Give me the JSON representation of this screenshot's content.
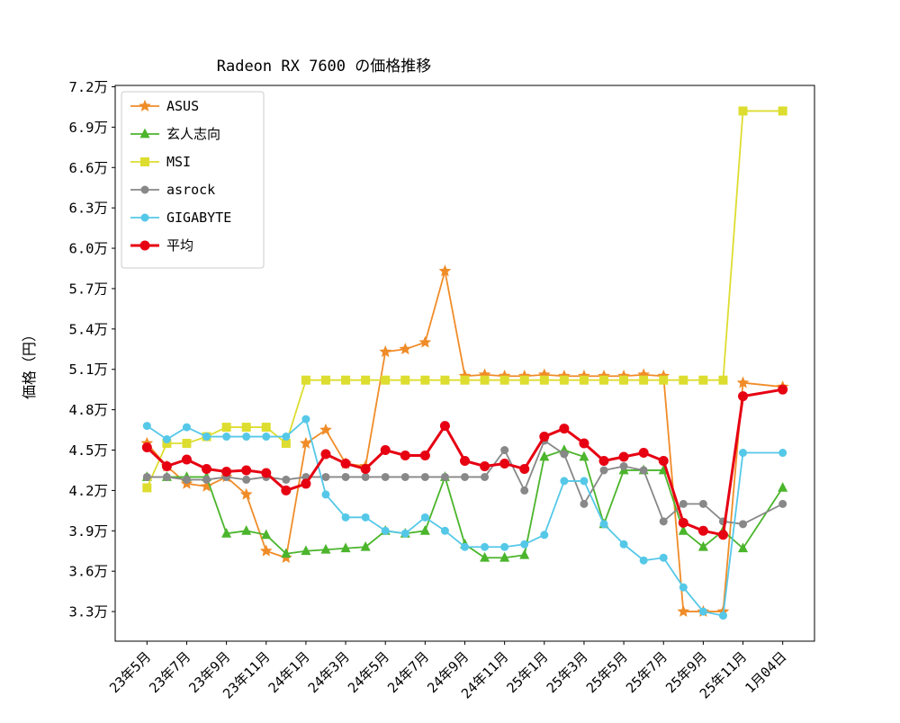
{
  "chart_data": {
    "type": "line",
    "title": "Radeon RX 7600 の価格推移",
    "ylabel": "価格（円）",
    "xlabel": "",
    "value_unit": "万円",
    "grid": false,
    "legend_position": "upper-left",
    "xlim": [
      -1.6,
      33.6
    ],
    "ylim": [
      3.08,
      7.21
    ],
    "y_ticks": [
      3.3,
      3.6,
      3.9,
      4.2,
      4.5,
      4.8,
      5.1,
      5.4,
      5.7,
      6.0,
      6.3,
      6.6,
      6.9,
      7.2
    ],
    "y_tick_labels": [
      "3.3万",
      "3.6万",
      "3.9万",
      "4.2万",
      "4.5万",
      "4.8万",
      "5.1万",
      "5.4万",
      "5.7万",
      "6.0万",
      "6.3万",
      "6.6万",
      "6.9万",
      "7.2万"
    ],
    "x_tick_positions": [
      0,
      2,
      4,
      6,
      8,
      10,
      12,
      14,
      16,
      18,
      20,
      22,
      24,
      26,
      28,
      30,
      32
    ],
    "x_tick_labels": [
      "23年5月",
      "23年7月",
      "23年9月",
      "23年11月",
      "24年1月",
      "24年3月",
      "24年5月",
      "24年7月",
      "24年9月",
      "24年11月",
      "25年1月",
      "25年3月",
      "25年5月",
      "25年7月",
      "25年9月",
      "25年11月",
      "1月04日"
    ],
    "x": [
      0,
      1,
      2,
      3,
      4,
      5,
      6,
      7,
      8,
      9,
      10,
      11,
      12,
      13,
      14,
      15,
      16,
      17,
      18,
      19,
      20,
      21,
      22,
      23,
      24,
      25,
      26,
      27,
      28,
      29,
      30,
      32
    ],
    "series": [
      {
        "name": "ASUS",
        "color": "#f08c28",
        "marker": "star",
        "marker_size": 4.5,
        "line_width": 1.8,
        "values": [
          4.55,
          4.38,
          4.25,
          4.23,
          4.3,
          4.17,
          3.75,
          3.7,
          4.55,
          4.65,
          4.4,
          4.38,
          5.23,
          5.25,
          5.3,
          5.83,
          5.05,
          5.06,
          5.05,
          5.05,
          5.06,
          5.05,
          5.05,
          5.05,
          5.05,
          5.06,
          5.05,
          3.3,
          3.3,
          3.3,
          5.0,
          4.97
        ]
      },
      {
        "name": "玄人志向",
        "color": "#4bb52c",
        "marker": "triangle",
        "marker_size": 5.5,
        "line_width": 1.8,
        "values": [
          4.3,
          4.3,
          4.3,
          4.3,
          3.88,
          3.9,
          3.87,
          3.73,
          3.75,
          3.76,
          3.77,
          3.78,
          3.9,
          3.88,
          3.9,
          4.3,
          3.8,
          3.7,
          3.7,
          3.72,
          4.45,
          4.5,
          4.45,
          3.95,
          4.35,
          4.35,
          4.35,
          3.9,
          3.78,
          3.9,
          3.77,
          4.22
        ]
      },
      {
        "name": "MSI",
        "color": "#dddd30",
        "marker": "square",
        "marker_size": 5,
        "line_width": 1.8,
        "values": [
          4.22,
          4.55,
          4.55,
          4.6,
          4.67,
          4.67,
          4.67,
          4.55,
          5.02,
          5.02,
          5.02,
          5.02,
          5.02,
          5.02,
          5.02,
          5.02,
          5.02,
          5.02,
          5.02,
          5.02,
          5.02,
          5.02,
          5.02,
          5.02,
          5.02,
          5.02,
          5.02,
          5.02,
          5.02,
          5.02,
          7.02,
          7.02
        ]
      },
      {
        "name": "asrock",
        "color": "#888888",
        "marker": "circle",
        "marker_size": 4.5,
        "line_width": 1.8,
        "values": [
          4.3,
          4.3,
          4.28,
          4.28,
          4.3,
          4.28,
          4.3,
          4.28,
          4.3,
          4.3,
          4.3,
          4.3,
          4.3,
          4.3,
          4.3,
          4.3,
          4.3,
          4.3,
          4.5,
          4.2,
          4.57,
          4.47,
          4.1,
          4.35,
          4.38,
          4.35,
          3.97,
          4.1,
          4.1,
          3.97,
          3.95,
          4.1
        ]
      },
      {
        "name": "GIGABYTE",
        "color": "#55c8e8",
        "marker": "circle",
        "marker_size": 4.5,
        "line_width": 1.8,
        "values": [
          4.68,
          4.58,
          4.67,
          4.6,
          4.6,
          4.6,
          4.6,
          4.6,
          4.73,
          4.17,
          4.0,
          4.0,
          3.9,
          3.88,
          4.0,
          3.9,
          3.78,
          3.78,
          3.78,
          3.8,
          3.87,
          4.27,
          4.27,
          3.95,
          3.8,
          3.68,
          3.7,
          3.48,
          3.3,
          3.27,
          4.48,
          4.48
        ]
      },
      {
        "name": "平均",
        "color": "#e60012",
        "marker": "circle",
        "marker_size": 5.5,
        "line_width": 3,
        "values": [
          4.52,
          4.38,
          4.43,
          4.36,
          4.34,
          4.35,
          4.33,
          4.2,
          4.25,
          4.47,
          4.4,
          4.36,
          4.5,
          4.46,
          4.46,
          4.68,
          4.42,
          4.38,
          4.4,
          4.36,
          4.6,
          4.66,
          4.55,
          4.42,
          4.45,
          4.48,
          4.42,
          3.96,
          3.9,
          3.87,
          4.9,
          4.95
        ]
      }
    ]
  },
  "legend": {
    "items": [
      "ASUS",
      "玄人志向",
      "MSI",
      "asrock",
      "GIGABYTE",
      "平均"
    ]
  }
}
